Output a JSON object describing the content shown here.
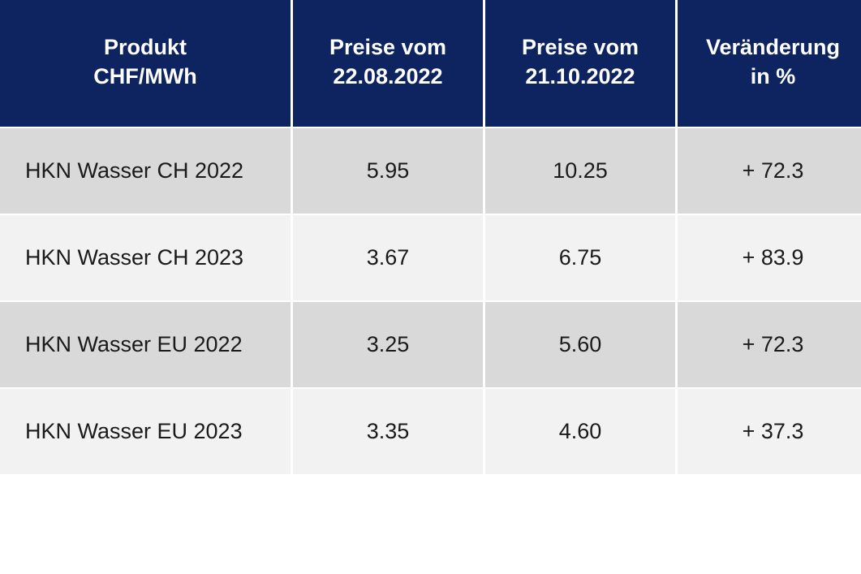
{
  "table": {
    "headers": [
      {
        "line1": "Produkt",
        "line2": "CHF/MWh"
      },
      {
        "line1": "Preise vom",
        "line2": "22.08.2022"
      },
      {
        "line1": "Preise vom",
        "line2": "21.10.2022"
      },
      {
        "line1": "Veränderung",
        "line2": "in %"
      }
    ],
    "rows": [
      {
        "product": "HKN Wasser CH 2022",
        "price_old": "5.95",
        "price_new": "10.25",
        "change": "+ 72.3"
      },
      {
        "product": "HKN Wasser CH 2023",
        "price_old": "3.67",
        "price_new": "6.75",
        "change": "+ 83.9"
      },
      {
        "product": "HKN Wasser EU 2022",
        "price_old": "3.25",
        "price_new": "5.60",
        "change": "+ 72.3"
      },
      {
        "product": "HKN Wasser EU 2023",
        "price_old": "3.35",
        "price_new": "4.60",
        "change": "+ 37.3"
      }
    ]
  },
  "colors": {
    "header_background": "#0e2460",
    "header_text": "#ffffff",
    "row_dark": "#d9d9d9",
    "row_light": "#f2f2f2"
  }
}
